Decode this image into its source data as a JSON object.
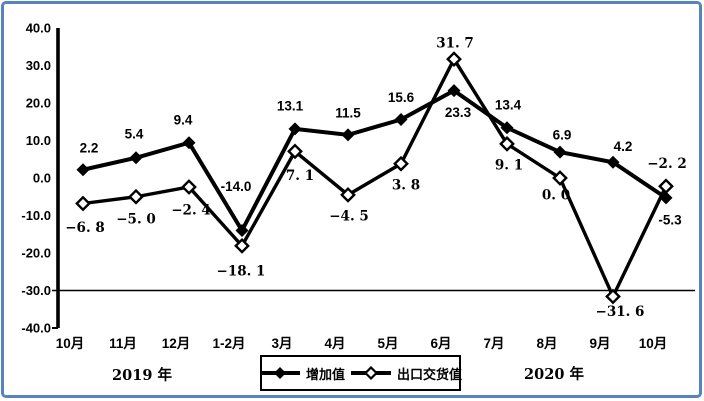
{
  "frame": {
    "background": "#ffffff",
    "border_color": "#5585bc",
    "line_color": "#000000"
  },
  "chart_data": {
    "type": "line",
    "title": "",
    "xlabel": "",
    "ylabel": "",
    "ylim": [
      -40,
      40
    ],
    "grid": "single horizontal gridline at -30 only",
    "legend_position": "bottom-center",
    "gridline_value": -30,
    "y_ticks": [
      {
        "value": 40,
        "label": "40.0"
      },
      {
        "value": 30,
        "label": "30.0"
      },
      {
        "value": 20,
        "label": "20.0"
      },
      {
        "value": 10,
        "label": "10.0"
      },
      {
        "value": 0,
        "label": "0.0"
      },
      {
        "value": -10,
        "label": "-10.0"
      },
      {
        "value": -20,
        "label": "-20.0"
      },
      {
        "value": -30,
        "label": "-30.0"
      },
      {
        "value": -40,
        "label": "-40.0"
      }
    ],
    "categories": [
      "10月",
      "11月",
      "12月",
      "1-2月",
      "3月",
      "4月",
      "5月",
      "6月",
      "7月",
      "8月",
      "9月",
      "10月"
    ],
    "year_groups": [
      {
        "label": "2019 年",
        "categories_span": [
          0,
          3
        ]
      },
      {
        "label": "2020 年",
        "categories_span": [
          4,
          11
        ]
      }
    ],
    "series": [
      {
        "name": "增加值",
        "marker": "filled-diamond",
        "color": "#000000",
        "values": [
          2.2,
          5.4,
          9.4,
          -14.0,
          13.1,
          11.5,
          15.6,
          23.3,
          13.4,
          6.9,
          4.2,
          -5.3
        ],
        "labels": [
          "2.2",
          "5.4",
          "9.4",
          "-14.0",
          "13.1",
          "11.5",
          "15.6",
          "23.3",
          "13.4",
          "6.9",
          "4.2",
          "-5.3"
        ],
        "label_offsets": [
          [
            6,
            -22
          ],
          [
            -2,
            -24
          ],
          [
            -6,
            -23
          ],
          [
            -6,
            -44
          ],
          [
            -5,
            -23
          ],
          [
            0,
            -22
          ],
          [
            0,
            -22
          ],
          [
            4,
            22
          ],
          [
            1,
            -23
          ],
          [
            2,
            -17
          ],
          [
            10,
            -16
          ],
          [
            4,
            22
          ]
        ]
      },
      {
        "name": "出口交货值",
        "marker": "open-diamond",
        "color": "#000000",
        "values": [
          -6.8,
          -5.0,
          -2.4,
          -18.1,
          7.1,
          -4.5,
          3.8,
          31.7,
          9.1,
          0.0,
          -31.6,
          -2.2
        ],
        "labels": [
          "−6. 8",
          "−5. 0",
          "−2. 4",
          "−18. 1",
          "7. 1",
          "−4. 5",
          "3. 8",
          "31. 7",
          "9. 1",
          "0. 0",
          "−31. 6",
          "−2. 2"
        ],
        "label_offsets": [
          [
            2,
            24
          ],
          [
            0,
            22
          ],
          [
            2,
            23
          ],
          [
            -1,
            25
          ],
          [
            5,
            24
          ],
          [
            1,
            21
          ],
          [
            5,
            21
          ],
          [
            1,
            -16
          ],
          [
            2,
            21
          ],
          [
            -4,
            17
          ],
          [
            7,
            15
          ],
          [
            1,
            -23
          ]
        ]
      }
    ]
  },
  "legend": {
    "items": [
      {
        "label": "增加值",
        "marker": "filled-diamond"
      },
      {
        "label": "出口交货值",
        "marker": "open-diamond"
      }
    ]
  }
}
